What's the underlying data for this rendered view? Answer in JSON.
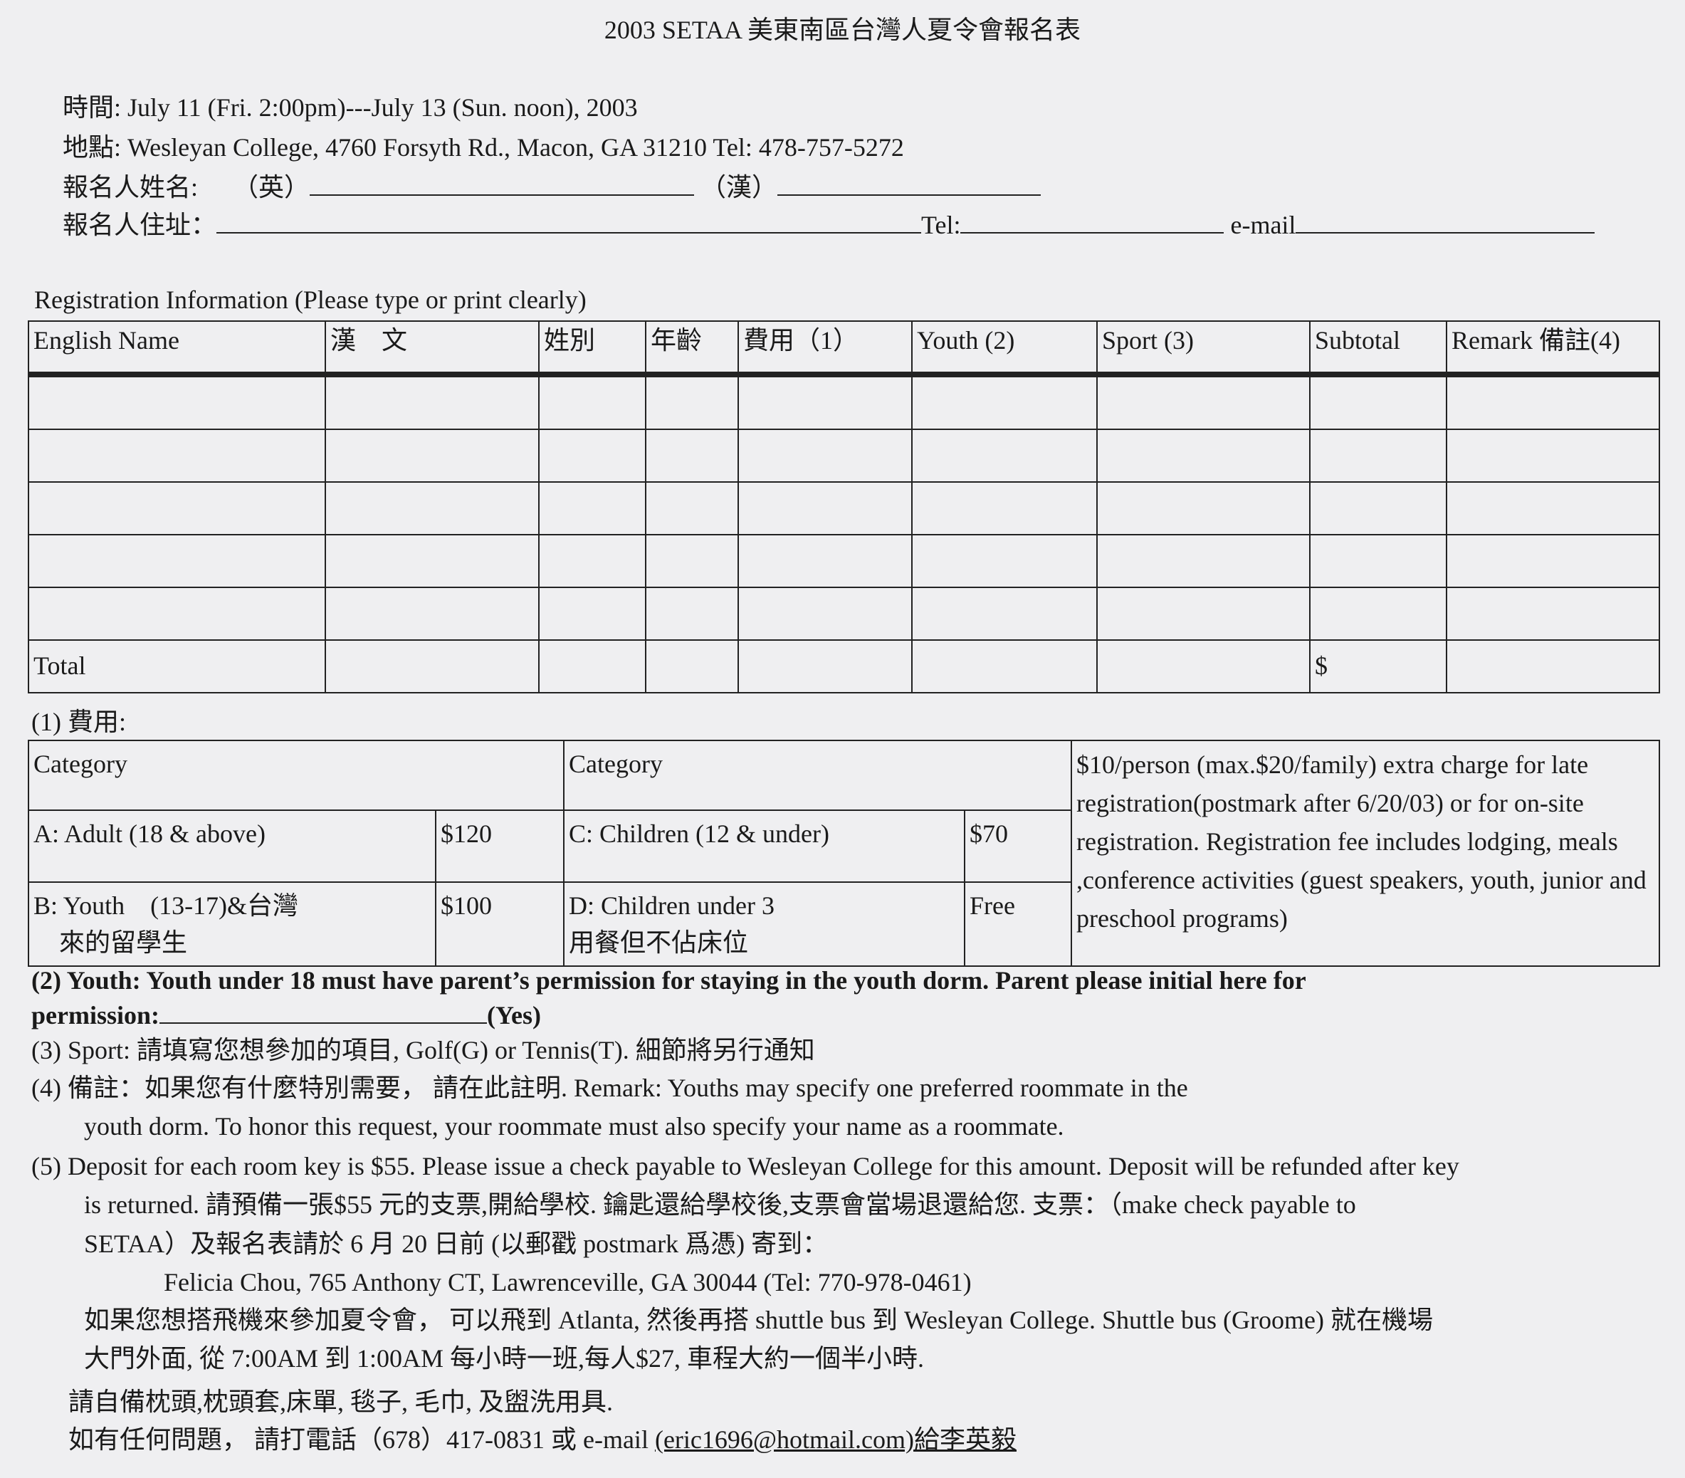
{
  "title": "2003 SETAA 美東南區台灣人夏令會報名表",
  "header": {
    "time": "時間: July 11 (Fri. 2:00pm)---July 13 (Sun. noon), 2003",
    "place": "地點: Wesleyan College, 4760 Forsyth Rd., Macon, GA 31210 Tel: 478-757-5272",
    "name_label": "報名人姓名:",
    "name_en": "（英）",
    "name_zh": "（漢）",
    "address_label": "報名人住址：",
    "tel_label": "Tel:",
    "email_label": "e-mail"
  },
  "registration": {
    "caption": "Registration Information (Please type or print clearly)",
    "columns": [
      "English Name",
      "漢　文",
      "姓別",
      "年齡",
      "費用（1）",
      "Youth (2)",
      "Sport (3)",
      "Subtotal",
      "Remark 備註(4)"
    ],
    "rows": [
      [
        "",
        "",
        "",
        "",
        "",
        "",
        "",
        "",
        ""
      ],
      [
        "",
        "",
        "",
        "",
        "",
        "",
        "",
        "",
        ""
      ],
      [
        "",
        "",
        "",
        "",
        "",
        "",
        "",
        "",
        ""
      ],
      [
        "",
        "",
        "",
        "",
        "",
        "",
        "",
        "",
        ""
      ],
      [
        "",
        "",
        "",
        "",
        "",
        "",
        "",
        "",
        ""
      ]
    ],
    "total_label": "Total",
    "total_currency": "$"
  },
  "fees": {
    "caption": "(1)  費用:",
    "header_left": "Category",
    "header_right": "Category",
    "rows": [
      {
        "cat1": "A: Adult (18 & above)",
        "price1": "$120",
        "cat2": "C: Children (12 & under)",
        "price2": "$70"
      },
      {
        "cat1": "B: Youth　(13-17)&台灣",
        "cat1_line2": "來的留學生",
        "price1": "$100",
        "cat2": "D: Children under 3",
        "cat2_line2": "用餐但不佔床位",
        "price2": "Free"
      }
    ],
    "note": "$10/person  (max.$20/family) extra charge for late registration(postmark after 6/20/03) or for on-site registration. Registration fee includes lodging, meals ,conference activities (guest speakers, youth, junior and preschool programs)"
  },
  "notes": {
    "n2_line1": "(2)  Youth: Youth under 18 must have parent’s permission for staying in the youth dorm. Parent please initial here for",
    "n2_line2_label": "permission:",
    "n2_line2_suffix": "(Yes)",
    "n3": "(3)  Sport: 請填寫您想參加的項目, Golf(G) or Tennis(T). 細節將另行通知",
    "n4_line1": "(4)  備註：如果您有什麼特別需要，  請在此註明. Remark: Youths may specify one preferred roommate in the",
    "n4_line2": "youth dorm. To honor this request, your roommate must also specify your name as a roommate.",
    "n5_line1": "(5)  Deposit for each room key is $55. Please issue a check payable to Wesleyan College for this amount. Deposit will be refunded after key",
    "n5_line2": "is returned. 請預備一張$55 元的支票,開給學校. 鑰匙還給學校後,支票會當場退還給您. 支票：（make check payable to",
    "n5_line3": "SETAA）及報名表請於 6 月 20 日前 (以郵戳 postmark 爲憑) 寄到：",
    "mail_to": "Felicia Chou, 765 Anthony CT, Lawrenceville, GA 30044 (Tel: 770-978-0461)",
    "flight_line1": "如果您想搭飛機來參加夏令會，  可以飛到 Atlanta,   然後再搭 shuttle bus 到 Wesleyan College. Shuttle bus (Groome) 就在機場",
    "flight_line2": "大門外面, 從 7:00AM 到 1:00AM 每小時一班,每人$27, 車程大約一個半小時.",
    "bring": "請自備枕頭,枕頭套,床單, 毯子, 毛巾, 及盥洗用具.",
    "contact_prefix": "如有任何問題，  請打電話（678）417-0831 或 e-mail ",
    "contact_email": "(eric1696@hotmail.com)給李英毅"
  }
}
